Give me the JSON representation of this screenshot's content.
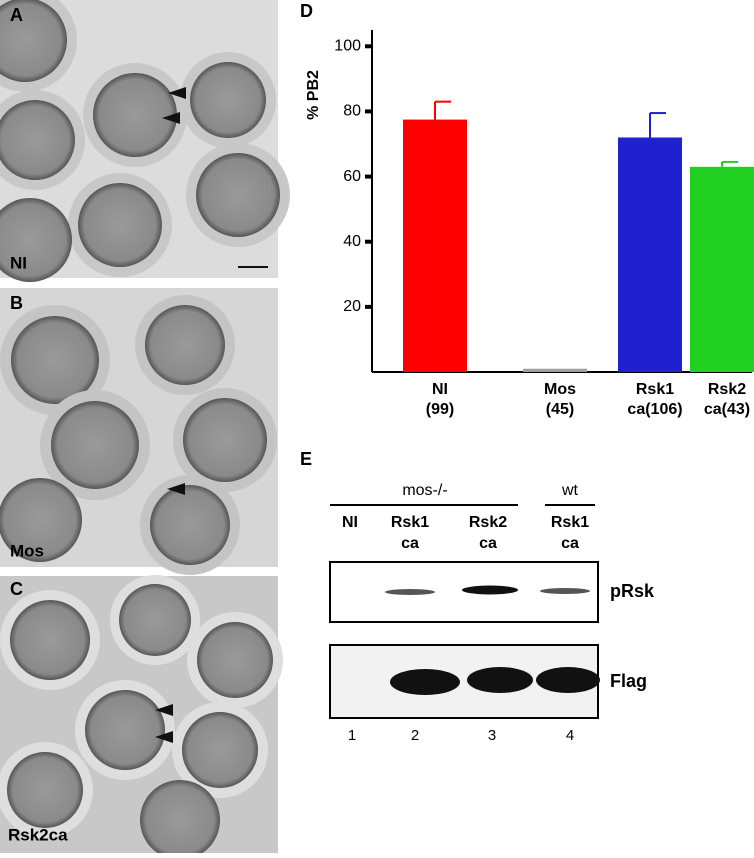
{
  "panels": {
    "a": {
      "letter": "A",
      "label": "NI"
    },
    "b": {
      "letter": "B",
      "label": "Mos"
    },
    "c": {
      "letter": "C",
      "label": "Rsk2ca"
    },
    "d": {
      "letter": "D"
    },
    "e": {
      "letter": "E"
    }
  },
  "chart_data": {
    "type": "bar",
    "ylabel": "% PB2",
    "categories": [
      [
        "NI",
        "(99)"
      ],
      [
        "Mos",
        "(45)"
      ],
      [
        "Rsk1",
        "ca(106)"
      ],
      [
        "Rsk2",
        "ca(43)"
      ]
    ],
    "values": [
      77.5,
      1,
      72,
      63
    ],
    "errors": [
      5.5,
      0,
      7.5,
      1.5
    ],
    "colors": [
      "#ff0000",
      "#a0a0a0",
      "#2020d0",
      "#22d022"
    ],
    "ylim": [
      0,
      105
    ],
    "yticks": [
      20,
      40,
      60,
      80,
      100
    ]
  },
  "blot": {
    "groups": [
      "mos-/-",
      "wt"
    ],
    "lanes": [
      [
        "NI"
      ],
      [
        "Rsk1",
        "ca"
      ],
      [
        "Rsk2",
        "ca"
      ],
      [
        "Rsk1",
        "ca"
      ]
    ],
    "rows": [
      "pRsk",
      "Flag"
    ],
    "lane_numbers": [
      "1",
      "2",
      "3",
      "4"
    ]
  }
}
